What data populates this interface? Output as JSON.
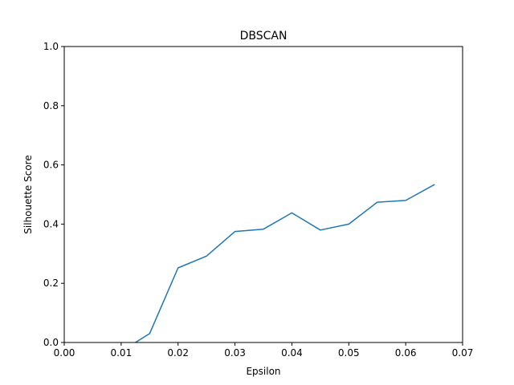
{
  "chart_data": {
    "type": "line",
    "title": "DBSCAN",
    "xlabel": "Epsilon",
    "ylabel": "Silhouette Score",
    "xlim": [
      0.0,
      0.07
    ],
    "ylim": [
      0.0,
      1.0
    ],
    "xticks": [
      "0.00",
      "0.01",
      "0.02",
      "0.03",
      "0.04",
      "0.05",
      "0.06",
      "0.07"
    ],
    "yticks": [
      "0.0",
      "0.2",
      "0.4",
      "0.6",
      "0.8",
      "1.0"
    ],
    "grid": false,
    "series": [
      {
        "color": "#1f77b4",
        "x": [
          0.005,
          0.01,
          0.015,
          0.02,
          0.025,
          0.03,
          0.035,
          0.04,
          0.045,
          0.05,
          0.055,
          0.06,
          0.065
        ],
        "y": [
          -0.09,
          -0.03,
          0.03,
          0.252,
          0.292,
          0.375,
          0.383,
          0.438,
          0.38,
          0.4,
          0.474,
          0.48,
          0.533
        ]
      }
    ]
  }
}
